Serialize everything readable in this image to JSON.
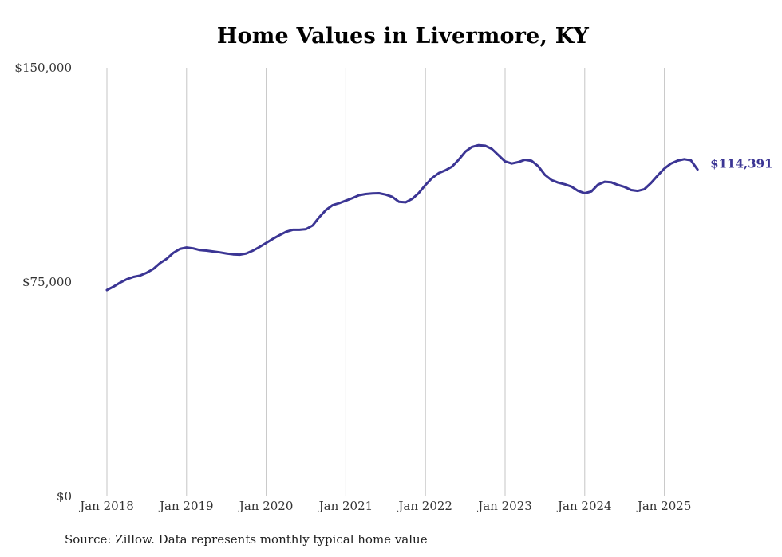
{
  "title": "Home Values in Livermore, KY",
  "source": "Source: Zillow. Data represents monthly typical home value",
  "colors": {
    "line": "#3b3594",
    "grid": "#c4c4c4",
    "text": "#333333",
    "background": "#ffffff"
  },
  "chart_data": {
    "type": "line",
    "title": "Home Values in Livermore, KY",
    "xlabel": "",
    "ylabel": "",
    "ylim": [
      0,
      150000
    ],
    "y_ticks": [
      0,
      75000,
      150000
    ],
    "y_tick_labels": [
      "$0",
      "$75,000",
      "$150,000"
    ],
    "x_range": [
      "2018-01",
      "2025-06"
    ],
    "x_tick_labels": [
      "Jan 2018",
      "Jan 2019",
      "Jan 2020",
      "Jan 2021",
      "Jan 2022",
      "Jan 2023",
      "Jan 2024",
      "Jan 2025"
    ],
    "grid": "vertical lines at each January",
    "end_label": "$114,391",
    "series": [
      {
        "x": [
          "2018-01",
          "2018-02",
          "2018-03",
          "2018-04",
          "2018-05",
          "2018-06",
          "2018-07",
          "2018-08",
          "2018-09",
          "2018-10",
          "2018-11",
          "2018-12",
          "2019-01",
          "2019-02",
          "2019-03",
          "2019-04",
          "2019-05",
          "2019-06",
          "2019-07",
          "2019-08",
          "2019-09",
          "2019-10",
          "2019-11",
          "2019-12",
          "2020-01",
          "2020-02",
          "2020-03",
          "2020-04",
          "2020-05",
          "2020-06",
          "2020-07",
          "2020-08",
          "2020-09",
          "2020-10",
          "2020-11",
          "2020-12",
          "2021-01",
          "2021-02",
          "2021-03",
          "2021-04",
          "2021-05",
          "2021-06",
          "2021-07",
          "2021-08",
          "2021-09",
          "2021-10",
          "2021-11",
          "2021-12",
          "2022-01",
          "2022-02",
          "2022-03",
          "2022-04",
          "2022-05",
          "2022-06",
          "2022-07",
          "2022-08",
          "2022-09",
          "2022-10",
          "2022-11",
          "2022-12",
          "2023-01",
          "2023-02",
          "2023-03",
          "2023-04",
          "2023-05",
          "2023-06",
          "2023-07",
          "2023-08",
          "2023-09",
          "2023-10",
          "2023-11",
          "2023-12",
          "2024-01",
          "2024-02",
          "2024-03",
          "2024-04",
          "2024-05",
          "2024-06",
          "2024-07",
          "2024-08",
          "2024-09",
          "2024-10",
          "2024-11",
          "2024-12",
          "2025-01",
          "2025-02",
          "2025-03",
          "2025-04",
          "2025-05",
          "2025-06"
        ],
        "values": [
          72200,
          73400,
          74800,
          76000,
          76800,
          77300,
          78300,
          79600,
          81600,
          83100,
          85200,
          86600,
          87100,
          86800,
          86200,
          86000,
          85700,
          85400,
          85000,
          84700,
          84600,
          85000,
          86000,
          87300,
          88700,
          90100,
          91400,
          92600,
          93300,
          93300,
          93500,
          94800,
          97700,
          100200,
          101900,
          102600,
          103500,
          104400,
          105400,
          105800,
          106000,
          106100,
          105600,
          104800,
          103100,
          102900,
          104100,
          106200,
          109000,
          111400,
          113100,
          114100,
          115400,
          117800,
          120600,
          122300,
          122900,
          122700,
          121600,
          119400,
          117200,
          116500,
          117000,
          117800,
          117400,
          115500,
          112500,
          110700,
          109800,
          109200,
          108400,
          106900,
          106100,
          106700,
          109100,
          110100,
          109900,
          109000,
          108300,
          107200,
          106900,
          107500,
          109700,
          112300,
          114700,
          116500,
          117500,
          118000,
          117600,
          114391
        ]
      }
    ]
  }
}
